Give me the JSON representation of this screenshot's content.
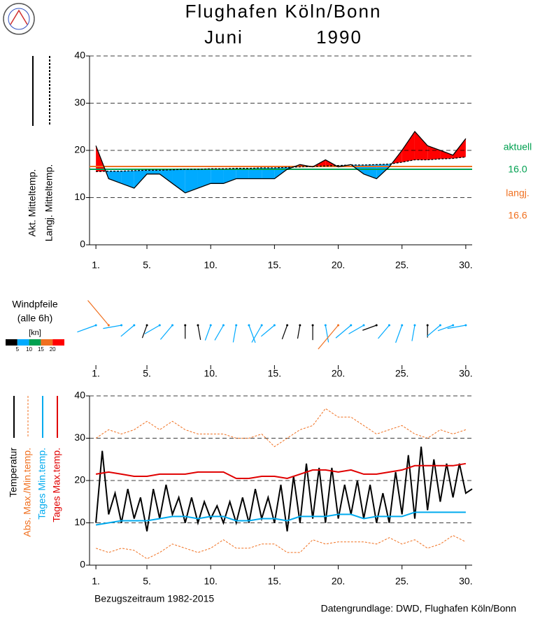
{
  "chart_data": [
    {
      "type": "area-diff",
      "title": "Flughafen Köln/Bonn",
      "month": "Juni",
      "year": 1990,
      "x": [
        1,
        2,
        3,
        4,
        5,
        6,
        7,
        8,
        9,
        10,
        11,
        12,
        13,
        14,
        15,
        16,
        17,
        18,
        19,
        20,
        21,
        22,
        23,
        24,
        25,
        26,
        27,
        28,
        29,
        30
      ],
      "xlim": [
        0.5,
        30.5
      ],
      "xticks": [
        {
          "value": 1,
          "label": "1."
        },
        {
          "value": 5,
          "label": "5."
        },
        {
          "value": 10,
          "label": "10."
        },
        {
          "value": 15,
          "label": "15."
        },
        {
          "value": 20,
          "label": "20."
        },
        {
          "value": 25,
          "label": "25."
        },
        {
          "value": 30,
          "label": "30."
        }
      ],
      "ylim": [
        0,
        40
      ],
      "yticks": [
        0,
        10,
        20,
        30,
        40
      ],
      "grid": true,
      "series": [
        {
          "name": "Akt. Mitteltemp.",
          "color": "#000000",
          "values": [
            21,
            14,
            13,
            12,
            15,
            15,
            13,
            11,
            12,
            13,
            13,
            14,
            14,
            14,
            14,
            16,
            17,
            16.5,
            18,
            16.5,
            17,
            15,
            14,
            16.5,
            20,
            24,
            21,
            20,
            19,
            22.5
          ]
        },
        {
          "name": "Langj. Mitteltemp.",
          "color": "#000000",
          "dashed": true,
          "values": [
            15.5,
            15.6,
            15.6,
            15.7,
            15.8,
            15.8,
            15.9,
            16,
            16,
            16.1,
            16.1,
            16.2,
            16.2,
            16.3,
            16.3,
            16.4,
            16.5,
            16.6,
            16.7,
            16.8,
            16.9,
            16.9,
            17,
            17.1,
            17.5,
            18,
            18,
            18.2,
            18.3,
            18.6
          ]
        }
      ],
      "above_color": "#ff0000",
      "below_color": "#00aaff",
      "reference_lines": [
        {
          "name": "aktuell",
          "value": 16,
          "value_label": "16.0",
          "color": "#00a050"
        },
        {
          "name": "langj.",
          "value": 16.6,
          "value_label": "16.6",
          "color": "#f07020"
        }
      ]
    },
    {
      "type": "wind",
      "title": "Windpfeile",
      "subtitle": "(alle 6h)",
      "unit": "[kn]",
      "x": [
        1,
        2,
        3,
        4,
        5,
        6,
        7,
        8,
        9,
        10,
        11,
        12,
        13,
        14,
        15,
        16,
        17,
        18,
        19,
        20,
        21,
        22,
        23,
        24,
        25,
        26,
        27,
        28,
        29,
        30
      ],
      "xlim": [
        0.5,
        30.5
      ],
      "xticks": [
        {
          "value": 1,
          "label": "1."
        },
        {
          "value": 5,
          "label": "5."
        },
        {
          "value": 10,
          "label": "10."
        },
        {
          "value": 15,
          "label": "15."
        },
        {
          "value": 20,
          "label": "20."
        },
        {
          "value": 25,
          "label": "25."
        },
        {
          "value": 30,
          "label": "30."
        }
      ],
      "speed": [
        8,
        18,
        7,
        6,
        3,
        6,
        7,
        3,
        4,
        5,
        6,
        6,
        7,
        8,
        6,
        4,
        3,
        4,
        6,
        17,
        8,
        6,
        4,
        6,
        7,
        5,
        2,
        6,
        5,
        7
      ],
      "direction": [
        250,
        320,
        260,
        230,
        200,
        240,
        220,
        180,
        170,
        200,
        210,
        190,
        160,
        210,
        230,
        200,
        190,
        180,
        170,
        220,
        230,
        240,
        250,
        220,
        200,
        190,
        180,
        230,
        250,
        260
      ],
      "scale": {
        "colors": [
          "#000000",
          "#00aaff",
          "#00a050",
          "#f07020",
          "#ff0000"
        ],
        "ticks": [
          5,
          10,
          15,
          20
        ]
      }
    },
    {
      "type": "line",
      "note": "Bezugszeitraum 1982-2015",
      "source": "Datengrundlage: DWD, Flughafen Köln/Bonn",
      "x": [
        1,
        2,
        3,
        4,
        5,
        6,
        7,
        8,
        9,
        10,
        11,
        12,
        13,
        14,
        15,
        16,
        17,
        18,
        19,
        20,
        21,
        22,
        23,
        24,
        25,
        26,
        27,
        28,
        29,
        30
      ],
      "xlim": [
        0.5,
        30.5
      ],
      "xticks": [
        {
          "value": 1,
          "label": "1."
        },
        {
          "value": 5,
          "label": "5."
        },
        {
          "value": 10,
          "label": "10."
        },
        {
          "value": 15,
          "label": "15."
        },
        {
          "value": 20,
          "label": "20."
        },
        {
          "value": 25,
          "label": "25."
        },
        {
          "value": 30,
          "label": "30."
        }
      ],
      "ylim": [
        0,
        40
      ],
      "yticks": [
        0,
        10,
        20,
        30,
        40
      ],
      "grid": true,
      "series": [
        {
          "name": "Temperatur",
          "color": "#000000",
          "x": [
            1,
            1.5,
            2,
            2.5,
            3,
            3.5,
            4,
            4.5,
            5,
            5.5,
            6,
            6.5,
            7,
            7.5,
            8,
            8.5,
            9,
            9.5,
            10,
            10.5,
            11,
            11.5,
            12,
            12.5,
            13,
            13.5,
            14,
            14.5,
            15,
            15.5,
            16,
            16.5,
            17,
            17.5,
            18,
            18.5,
            19,
            19.5,
            20,
            20.5,
            21,
            21.5,
            22,
            22.5,
            23,
            23.5,
            24,
            24.5,
            25,
            25.5,
            26,
            26.5,
            27,
            27.5,
            28,
            28.5,
            29,
            29.5,
            30,
            30.5
          ],
          "values": [
            10,
            27,
            12,
            17,
            10,
            18,
            11,
            16,
            8,
            18,
            11,
            19,
            12,
            16,
            10,
            16,
            10,
            15,
            11,
            14,
            10,
            15,
            10,
            16,
            10,
            18,
            11,
            16,
            10,
            19,
            8,
            21,
            10,
            24,
            11,
            23,
            10,
            23,
            11,
            19,
            12,
            20,
            11,
            19,
            10,
            17,
            10,
            22,
            12,
            26,
            11,
            28,
            13,
            25,
            15,
            24,
            16,
            24,
            17,
            18
          ]
        },
        {
          "name": "Abs. Max./Min.temp.",
          "color": "#f07020",
          "dashed": true,
          "values": [
            30,
            32,
            31,
            32,
            34,
            32,
            34,
            32,
            31,
            31,
            31,
            30,
            30,
            31,
            28,
            30,
            32,
            33,
            37,
            35,
            35,
            33,
            31,
            32,
            33,
            31,
            30,
            32,
            31,
            32
          ],
          "values_min": [
            4,
            3,
            4,
            3.5,
            1.5,
            3,
            5,
            4,
            3,
            4,
            6,
            4,
            4,
            5,
            5,
            3,
            3,
            6,
            5,
            5.5,
            5.5,
            5.5,
            5,
            6.5,
            5,
            6,
            4,
            5,
            7,
            5.5
          ]
        },
        {
          "name": "Tages Min.temp.",
          "color": "#00aaee",
          "values": [
            9.5,
            10,
            10.5,
            10.5,
            10.5,
            11,
            11.5,
            11.5,
            11,
            11.5,
            11.5,
            10.5,
            10.5,
            11,
            11,
            10.5,
            11.5,
            11.5,
            11.5,
            12,
            12,
            11,
            11.5,
            11.5,
            11.5,
            12.5,
            12.5,
            12.5,
            12.5,
            12.5
          ]
        },
        {
          "name": "Tages Max.temp.",
          "color": "#e00000",
          "values": [
            21.5,
            22,
            21.5,
            21,
            21,
            21.5,
            21.5,
            21.5,
            22,
            22,
            22,
            20.5,
            20.5,
            21,
            21,
            20.5,
            21.5,
            22.5,
            22.5,
            22,
            22.5,
            21.5,
            21.5,
            22,
            22.5,
            23.5,
            23.5,
            23.5,
            23.5,
            24
          ]
        }
      ]
    }
  ]
}
